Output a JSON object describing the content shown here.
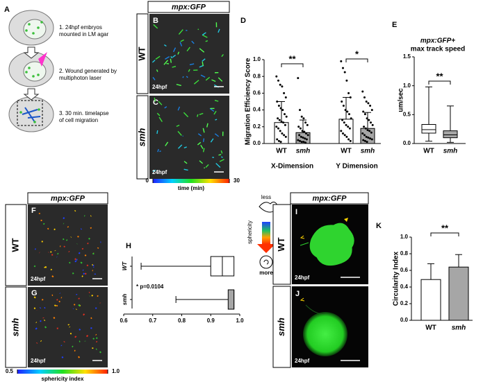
{
  "panel_labels": [
    "A",
    "B",
    "C",
    "D",
    "E",
    "F",
    "G",
    "H",
    "I",
    "J",
    "K"
  ],
  "schematic": {
    "steps": [
      "1. 24hpf embryos",
      "mounted in LM agar",
      "2. Wound generated by",
      "multiphoton laser",
      "3. 30 min. timelapse",
      "of cell migration"
    ]
  },
  "imaging": {
    "marker": "mpx:GFP",
    "genotypes": [
      "WT",
      "smh"
    ],
    "stage": "24hpf"
  },
  "time_scale": {
    "label": "time (min)",
    "ticks": [
      0,
      30
    ]
  },
  "sphericity_scale": {
    "label": "sphericity index",
    "ticks": [
      0.5,
      {
        "value": 1,
        "label": "1.0"
      }
    ]
  },
  "sphericity_key": {
    "label": "sphericity",
    "top": "less",
    "bottom": "more"
  },
  "chart_data": [
    {
      "type": "bar",
      "ylabel": "Migration Efficiency Score",
      "groups": [
        "X-Dimension",
        "Y Dimension"
      ],
      "series": [
        {
          "name": "WT",
          "color": "#ffffff",
          "values": [
            0.25,
            0.29
          ],
          "errors": [
            0.25,
            0.26
          ],
          "points": [
            [
              0.8,
              0.75,
              0.7,
              0.68,
              0.6,
              0.55,
              0.5,
              0.45,
              0.42,
              0.4,
              0.35,
              0.32,
              0.3,
              0.28,
              0.26,
              0.25,
              0.22,
              0.2,
              0.18,
              0.15,
              0.12,
              0.1,
              0.08,
              0.05,
              0.03,
              0.02
            ],
            [
              0.98,
              0.9,
              0.85,
              0.75,
              0.6,
              0.55,
              0.5,
              0.45,
              0.4,
              0.38,
              0.35,
              0.3,
              0.28,
              0.25,
              0.22,
              0.2,
              0.18,
              0.15,
              0.12,
              0.1,
              0.08,
              0.05,
              0.03
            ]
          ]
        },
        {
          "name": "smh",
          "color": "#a6a6a6",
          "values": [
            0.13,
            0.18
          ],
          "errors": [
            0.15,
            0.19
          ],
          "points": [
            [
              0.78,
              0.4,
              0.32,
              0.3,
              0.25,
              0.22,
              0.2,
              0.18,
              0.15,
              0.14,
              0.12,
              0.1,
              0.1,
              0.08,
              0.07,
              0.06,
              0.05,
              0.04,
              0.03,
              0.02,
              0.02,
              0.01
            ],
            [
              0.62,
              0.55,
              0.5,
              0.48,
              0.45,
              0.4,
              0.38,
              0.35,
              0.3,
              0.28,
              0.25,
              0.22,
              0.2,
              0.18,
              0.16,
              0.15,
              0.13,
              0.12,
              0.1,
              0.08,
              0.07,
              0.06,
              0.05,
              0.04,
              0.03,
              0.02
            ]
          ]
        }
      ],
      "significance": [
        "**",
        "*"
      ],
      "ylim": [
        0,
        1
      ],
      "yticks": [
        {
          "value": 0,
          "label": "0.0"
        },
        0.2,
        0.4,
        0.6,
        0.8,
        {
          "value": 1,
          "label": "1.0"
        }
      ]
    },
    {
      "type": "box",
      "title": "mpx:GFP+",
      "subtitle": "max track speed",
      "ylabel": "um/sec",
      "categories": [
        "WT",
        "smh"
      ],
      "colors": [
        "#ffffff",
        "#a6a6a6"
      ],
      "boxes": [
        {
          "min": 0.04,
          "q1": 0.18,
          "median": 0.24,
          "q3": 0.33,
          "max": 0.98
        },
        {
          "min": 0.02,
          "q1": 0.1,
          "median": 0.15,
          "q3": 0.22,
          "max": 0.65
        }
      ],
      "significance": "**",
      "ylim": [
        0,
        1.5
      ],
      "yticks": [
        {
          "value": 0,
          "label": "0.0"
        },
        0.5,
        {
          "value": 1,
          "label": "1.0"
        },
        1.5
      ]
    },
    {
      "type": "hbox",
      "categories": [
        "WT",
        "smh"
      ],
      "colors": [
        "#ffffff",
        "#a6a6a6"
      ],
      "boxes": [
        {
          "min": 0.66,
          "q1": 0.9,
          "median": 0.94,
          "q3": 0.98,
          "max": 0.98
        },
        {
          "min": 0.78,
          "q1": 0.96,
          "median": 0.98,
          "q3": 0.98,
          "max": 0.98
        }
      ],
      "annotation": "* p=0.0104",
      "xlim": [
        0.6,
        1
      ],
      "xticks": [
        0.6,
        0.7,
        0.8,
        0.9,
        {
          "value": 1,
          "label": "1.0"
        }
      ]
    },
    {
      "type": "bar",
      "ylabel": "Circularity Index",
      "categories": [
        "WT",
        "smh"
      ],
      "colors": [
        "#ffffff",
        "#a6a6a6"
      ],
      "values": [
        0.49,
        0.64
      ],
      "errors": [
        0.19,
        0.15
      ],
      "significance": "**",
      "ylim": [
        0,
        1
      ],
      "yticks": [
        {
          "value": 0,
          "label": "0.0"
        },
        0.2,
        0.4,
        0.6,
        0.8,
        {
          "value": 1,
          "label": "1.0"
        }
      ]
    }
  ]
}
